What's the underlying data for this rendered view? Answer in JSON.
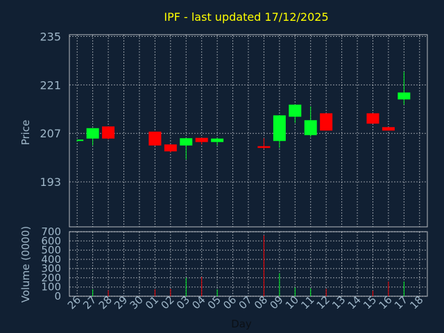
{
  "chart_data": [
    {
      "type": "candlestick",
      "title": "IPF - last updated 17/12/2025",
      "ylabel": "Price",
      "ylim": [
        180,
        235.5
      ],
      "yticks": [
        193,
        207,
        221,
        235
      ],
      "grid": true,
      "colors": {
        "up": "#00ff26",
        "down": "#ff0000",
        "background": "#112033",
        "title": "#ffff00",
        "text": "#9fb7c9"
      },
      "candles": [
        {
          "day": "26",
          "open": 205,
          "high": 205.2,
          "low": 204.6,
          "close": 205.2
        },
        {
          "day": "27",
          "open": 205.5,
          "high": 208.5,
          "low": 203.5,
          "close": 208.5
        },
        {
          "day": "28",
          "open": 209,
          "high": 209,
          "low": 205.2,
          "close": 205.5
        },
        {
          "day": "01",
          "open": 207.5,
          "high": 207.5,
          "low": 203.5,
          "close": 203.5
        },
        {
          "day": "02",
          "open": 203.8,
          "high": 203.8,
          "low": 201.5,
          "close": 201.8
        },
        {
          "day": "03",
          "open": 203.5,
          "high": 205.6,
          "low": 199.5,
          "close": 205.6
        },
        {
          "day": "04",
          "open": 205.7,
          "high": 205.7,
          "low": 203.8,
          "close": 204.5
        },
        {
          "day": "05",
          "open": 204.5,
          "high": 205.7,
          "low": 203.5,
          "close": 205.5
        },
        {
          "day": "08",
          "open": 203.3,
          "high": 205.6,
          "low": 202.5,
          "close": 202.8
        },
        {
          "day": "09",
          "open": 204.8,
          "high": 212.3,
          "low": 202.8,
          "close": 212.2
        },
        {
          "day": "10",
          "open": 211.8,
          "high": 215.3,
          "low": 210,
          "close": 215.3
        },
        {
          "day": "11",
          "open": 206.5,
          "high": 214.8,
          "low": 206,
          "close": 210.8
        },
        {
          "day": "12",
          "open": 212.8,
          "high": 212.8,
          "low": 207.8,
          "close": 207.8
        },
        {
          "day": "15",
          "open": 212.8,
          "high": 212.8,
          "low": 209.8,
          "close": 209.8
        },
        {
          "day": "16",
          "open": 208.8,
          "high": 208.8,
          "low": 207.8,
          "close": 207.8
        },
        {
          "day": "17",
          "open": 216.8,
          "high": 224.8,
          "low": 215.3,
          "close": 218.8
        }
      ]
    },
    {
      "type": "bar",
      "ylabel": "Volume (0000)",
      "xlabel": "Day",
      "ylim": [
        0,
        700
      ],
      "yticks": [
        0,
        100,
        200,
        300,
        400,
        500,
        600,
        700
      ],
      "grid": true,
      "categories": [
        "26",
        "27",
        "28",
        "29",
        "30",
        "01",
        "02",
        "03",
        "04",
        "05",
        "06",
        "07",
        "08",
        "09",
        "10",
        "11",
        "12",
        "13",
        "14",
        "15",
        "16",
        "17",
        "18"
      ],
      "values": [
        {
          "day": "27",
          "value": 75,
          "direction": "up"
        },
        {
          "day": "28",
          "value": 65,
          "direction": "down"
        },
        {
          "day": "01",
          "value": 75,
          "direction": "down"
        },
        {
          "day": "02",
          "value": 80,
          "direction": "down"
        },
        {
          "day": "03",
          "value": 200,
          "direction": "up"
        },
        {
          "day": "04",
          "value": 210,
          "direction": "down"
        },
        {
          "day": "05",
          "value": 75,
          "direction": "up"
        },
        {
          "day": "08",
          "value": 660,
          "direction": "down"
        },
        {
          "day": "09",
          "value": 250,
          "direction": "up"
        },
        {
          "day": "10",
          "value": 95,
          "direction": "up"
        },
        {
          "day": "11",
          "value": 85,
          "direction": "up"
        },
        {
          "day": "12",
          "value": 80,
          "direction": "down"
        },
        {
          "day": "15",
          "value": 60,
          "direction": "down"
        },
        {
          "day": "16",
          "value": 160,
          "direction": "down"
        },
        {
          "day": "17",
          "value": 160,
          "direction": "up"
        }
      ]
    }
  ]
}
